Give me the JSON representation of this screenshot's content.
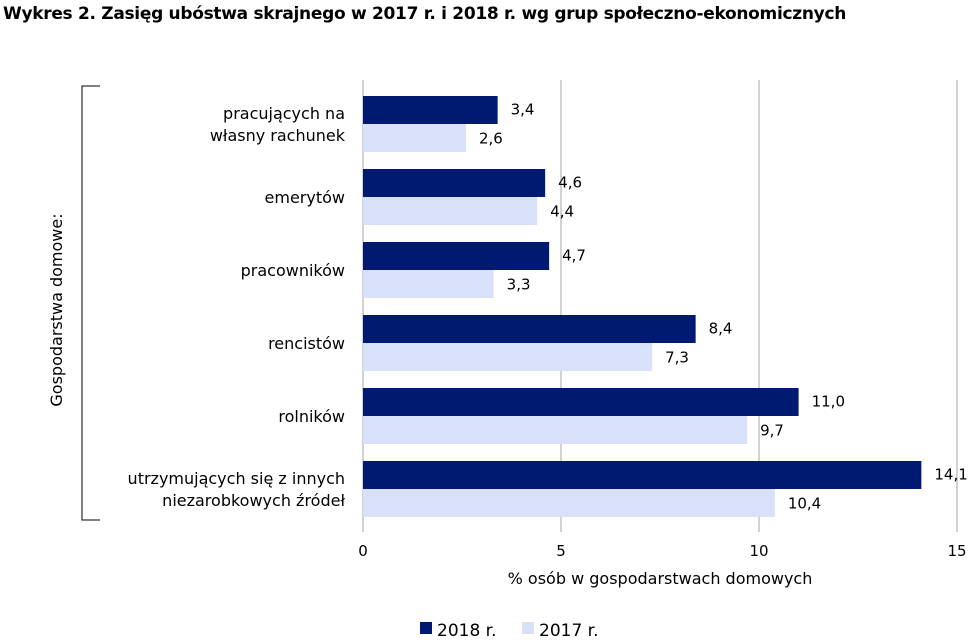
{
  "chart_data": {
    "type": "bar",
    "orientation": "horizontal",
    "title": "Wykres 2. Zasięg ubóstwa skrajnego w 2017 r. i 2018 r. wg grup społeczno-ekonomicznych",
    "xlabel": "% osób w gospodarstwach domowych",
    "ylabel": "Gospodarstwa domowe:",
    "categories": [
      "pracujących na\nwłasny rachunek",
      "emerytów",
      "pracowników",
      "rencistów",
      "rolników",
      "utrzymujących się z innych\nniezarobkowych źródeł"
    ],
    "series": [
      {
        "name": "2018 r.",
        "color": "#001a72",
        "values": [
          3.4,
          4.6,
          4.7,
          8.4,
          11.0,
          14.1
        ],
        "labels": [
          "3,4",
          "4,6",
          "4,7",
          "8,4",
          "11,0",
          "14,1"
        ]
      },
      {
        "name": "2017 r.",
        "color": "#d9e1fa",
        "values": [
          2.6,
          4.4,
          3.3,
          7.3,
          9.7,
          10.4
        ],
        "labels": [
          "2,6",
          "4,4",
          "3,3",
          "7,3",
          "9,7",
          "10,4"
        ]
      }
    ],
    "xlim": [
      0,
      15
    ],
    "xticks": [
      0,
      5,
      10,
      15
    ],
    "xtick_labels": [
      "0",
      "5",
      "10",
      "15"
    ],
    "grid": "vertical",
    "legend": "bottom"
  }
}
